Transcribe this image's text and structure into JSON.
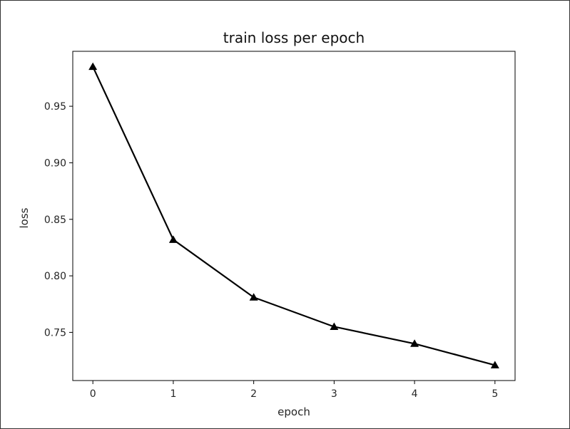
{
  "chart_data": {
    "type": "line",
    "title": "train loss per epoch",
    "xlabel": "epoch",
    "ylabel": "loss",
    "x": [
      0,
      1,
      2,
      3,
      4,
      5
    ],
    "series": [
      {
        "values": [
          0.985,
          0.832,
          0.781,
          0.755,
          0.74,
          0.721
        ],
        "color": "#000000",
        "marker": "triangle-up"
      }
    ],
    "xticks": [
      "0",
      "1",
      "2",
      "3",
      "4",
      "5"
    ],
    "yticks": [
      "0.75",
      "0.80",
      "0.85",
      "0.90",
      "0.95"
    ],
    "xlim": [
      -0.25,
      5.25
    ],
    "ylim": [
      0.7074,
      0.9986
    ],
    "grid": false
  }
}
